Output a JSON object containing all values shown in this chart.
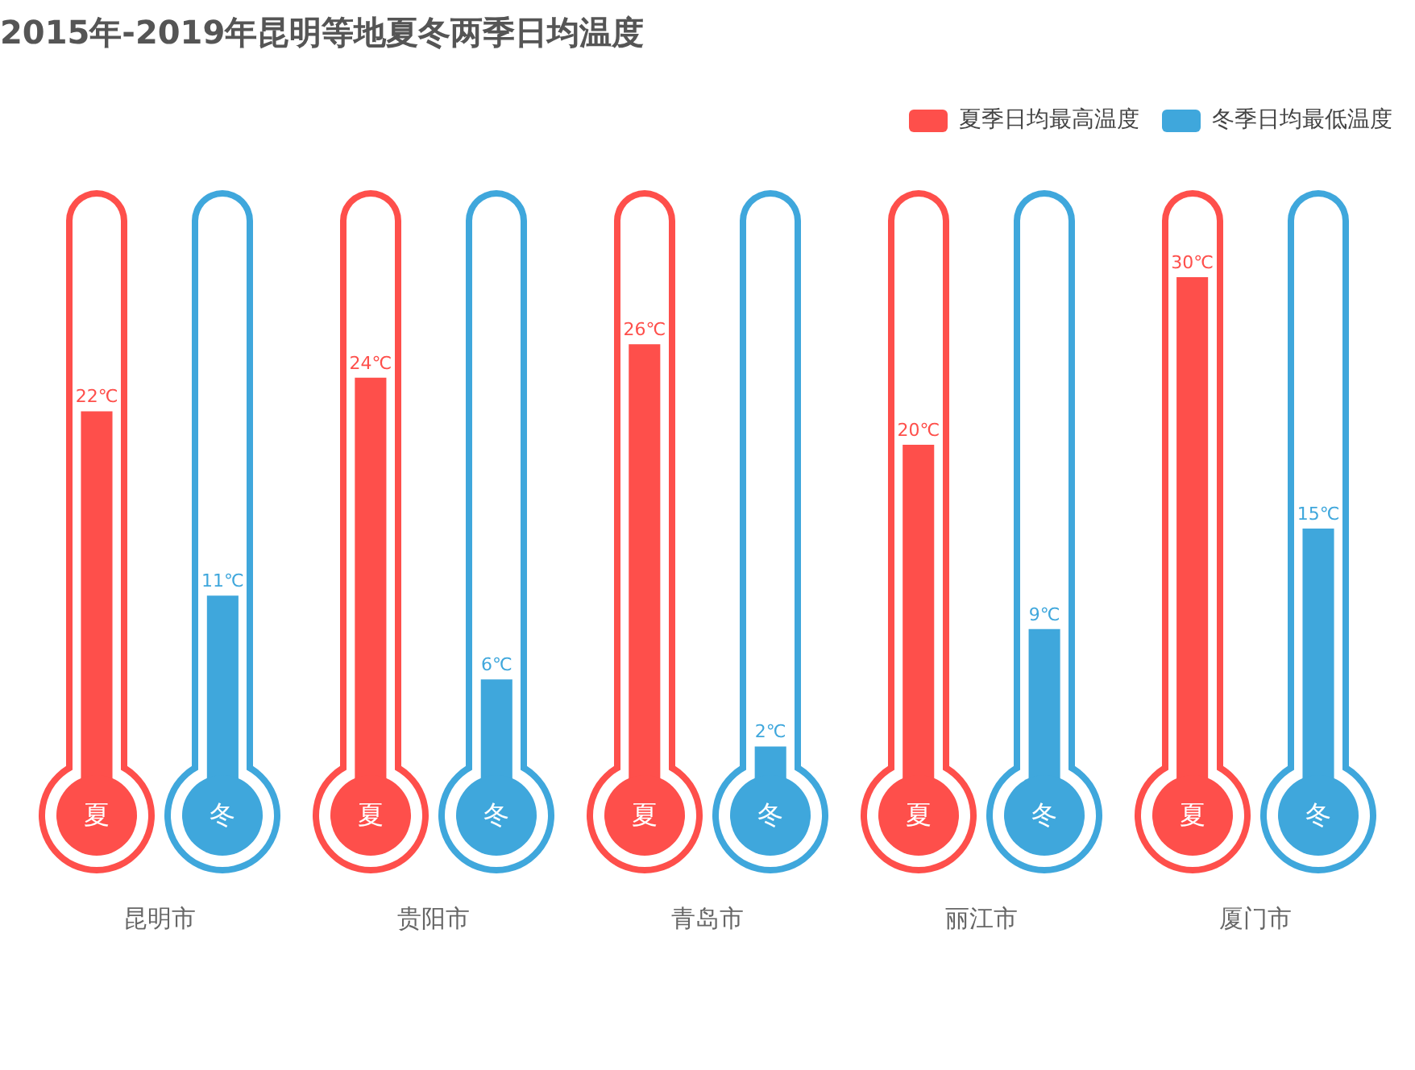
{
  "chart_data": {
    "type": "bar",
    "title": "2015年-2019年昆明等地夏冬两季日均温度",
    "categories": [
      "昆明市",
      "贵阳市",
      "青岛市",
      "丽江市",
      "厦门市"
    ],
    "series": [
      {
        "name": "夏季日均最高温度",
        "color": "#fe4f4b",
        "values": [
          22,
          24,
          26,
          20,
          30
        ],
        "value_labels": [
          "22℃",
          "24℃",
          "26℃",
          "20℃",
          "30℃"
        ]
      },
      {
        "name": "冬季日均最低温度",
        "color": "#3fa7dc",
        "values": [
          11,
          6,
          2,
          9,
          15
        ],
        "value_labels": [
          "11℃",
          "6℃",
          "2℃",
          "9℃",
          "15℃"
        ]
      }
    ],
    "legend": "top right",
    "annotations": [
      "夏",
      "冬"
    ]
  }
}
